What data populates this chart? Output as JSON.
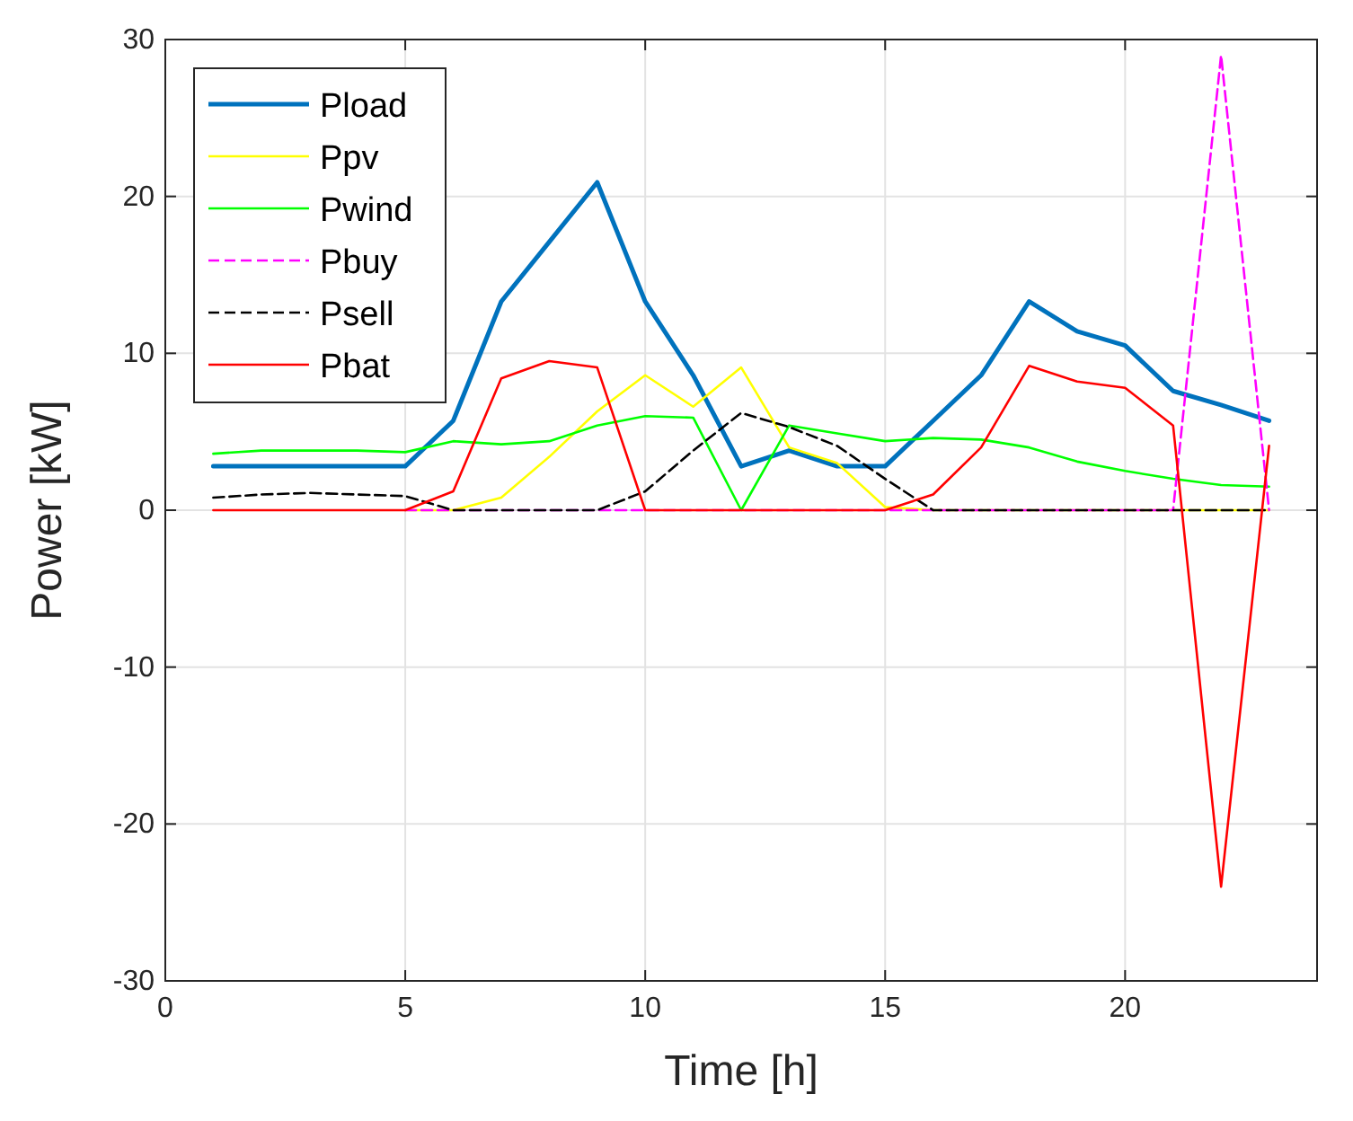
{
  "chart_data": {
    "type": "line",
    "xlabel": "Time [h]",
    "ylabel": "Power [kW]",
    "x": [
      1,
      2,
      3,
      4,
      5,
      6,
      7,
      8,
      9,
      10,
      11,
      12,
      13,
      14,
      15,
      16,
      17,
      18,
      19,
      20,
      21,
      22,
      23
    ],
    "xlim": [
      0,
      24
    ],
    "xticks": [
      0,
      5,
      10,
      15,
      20
    ],
    "ylim": [
      -30,
      30
    ],
    "yticks": [
      -30,
      -20,
      -10,
      0,
      10,
      20,
      30
    ],
    "grid": true,
    "legend": "top left",
    "marker": "none",
    "series": [
      {
        "name": "Pload",
        "color": "#0072bd",
        "line_style": "solid",
        "values": [
          2.8,
          2.8,
          2.8,
          2.8,
          2.8,
          5.7,
          13.3,
          17.1,
          20.9,
          13.3,
          8.6,
          2.8,
          3.8,
          2.8,
          2.8,
          5.7,
          8.6,
          13.3,
          11.4,
          10.5,
          7.6,
          6.7,
          5.7
        ]
      },
      {
        "name": "Ppv",
        "color": "#ffff00",
        "line_style": "solid",
        "values": [
          null,
          null,
          null,
          null,
          0,
          0,
          0.8,
          3.4,
          6.3,
          8.6,
          6.6,
          9.1,
          4,
          3,
          0.2,
          0,
          0,
          0,
          0,
          0,
          0,
          0,
          0
        ]
      },
      {
        "name": "Pwind",
        "color": "#00ff00",
        "line_style": "solid",
        "values": [
          3.6,
          3.8,
          3.8,
          3.8,
          3.7,
          4.4,
          4.2,
          4.4,
          5.4,
          6,
          5.9,
          0,
          5.4,
          4.9,
          4.4,
          4.6,
          4.5,
          4,
          3.1,
          2.5,
          2,
          1.6,
          1.5
        ]
      },
      {
        "name": "Pbuy",
        "color": "#ff00ff",
        "line_style": "dashed",
        "values": [
          null,
          null,
          null,
          null,
          0,
          0,
          0,
          0,
          0,
          0,
          0,
          0,
          0,
          0,
          0,
          0,
          0,
          0,
          0,
          0,
          0,
          29,
          0
        ]
      },
      {
        "name": "Psell",
        "color": "#000000",
        "line_style": "dashed",
        "values": [
          0.8,
          1,
          1.1,
          1,
          0.9,
          0,
          0,
          0,
          0,
          1.2,
          3.8,
          6.2,
          5.3,
          4.1,
          2,
          0,
          0,
          0,
          0,
          0,
          0,
          0,
          0
        ]
      },
      {
        "name": "Pbat",
        "color": "#ff0000",
        "line_style": "solid",
        "values": [
          0,
          0,
          0,
          0,
          0,
          1.2,
          8.4,
          9.5,
          9.1,
          0,
          0,
          0,
          0,
          0,
          0,
          1,
          4,
          9.2,
          8.2,
          7.8,
          5.4,
          -24,
          4.1
        ]
      }
    ]
  }
}
